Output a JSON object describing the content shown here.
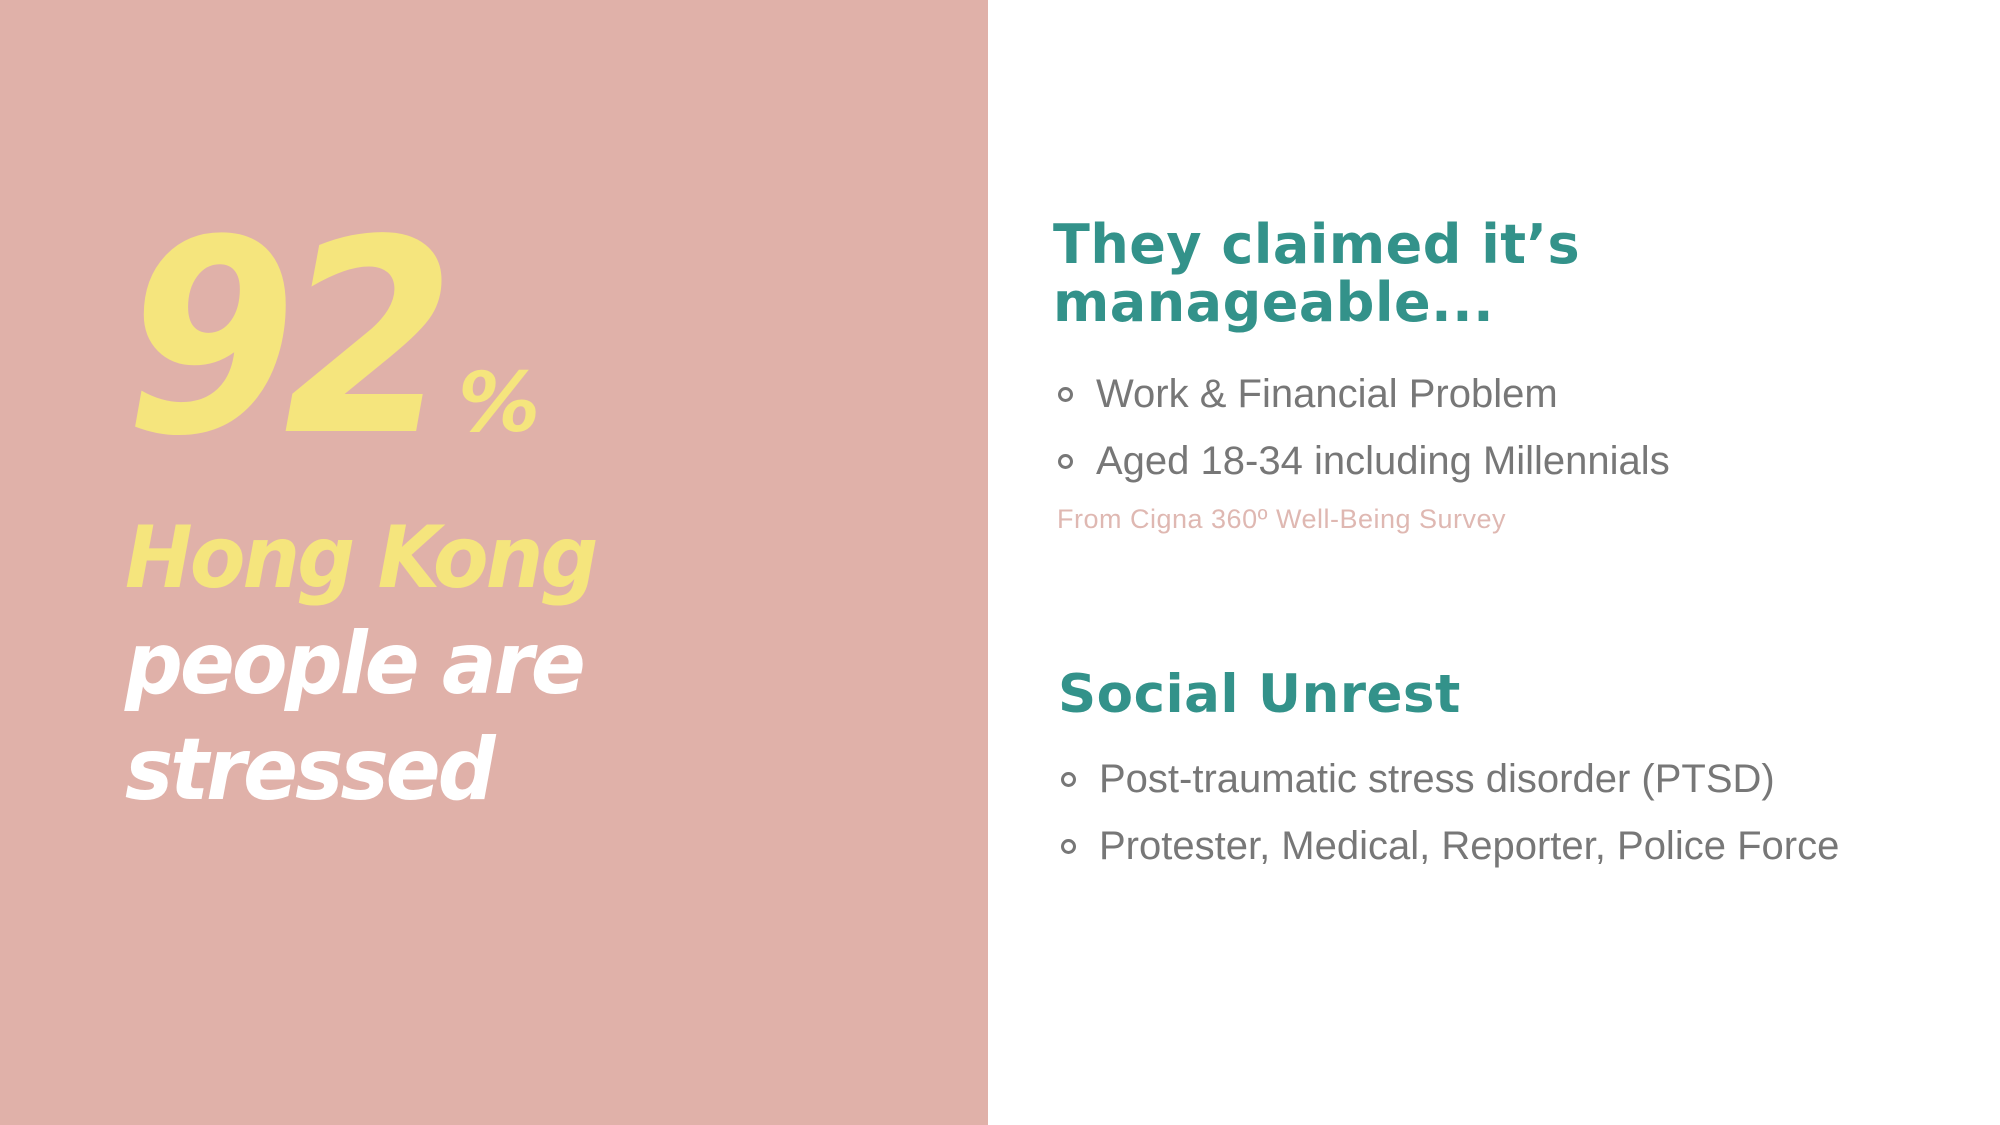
{
  "left": {
    "stat_number": "92",
    "stat_unit": "%",
    "headline_highlight": "Hong Kong",
    "headline_line2": "people are",
    "headline_line3": "stressed"
  },
  "section1": {
    "title_line1": "They claimed it’s",
    "title_line2": "manageable...",
    "items": [
      "Work & Financial Problem",
      "Aged 18-34 including Millennials"
    ],
    "source": "From Cigna 360º Well-Being Survey"
  },
  "section2": {
    "title": "Social Unrest",
    "items": [
      "Post-traumatic stress disorder (PTSD)",
      "Protester, Medical, Reporter, Police Force"
    ]
  },
  "colors": {
    "panel_pink": "#e0b1a9",
    "stat_yellow": "#f5e57d",
    "heading_teal": "#33928a",
    "body_gray": "#777777",
    "source_pink": "#dfb8b2"
  }
}
